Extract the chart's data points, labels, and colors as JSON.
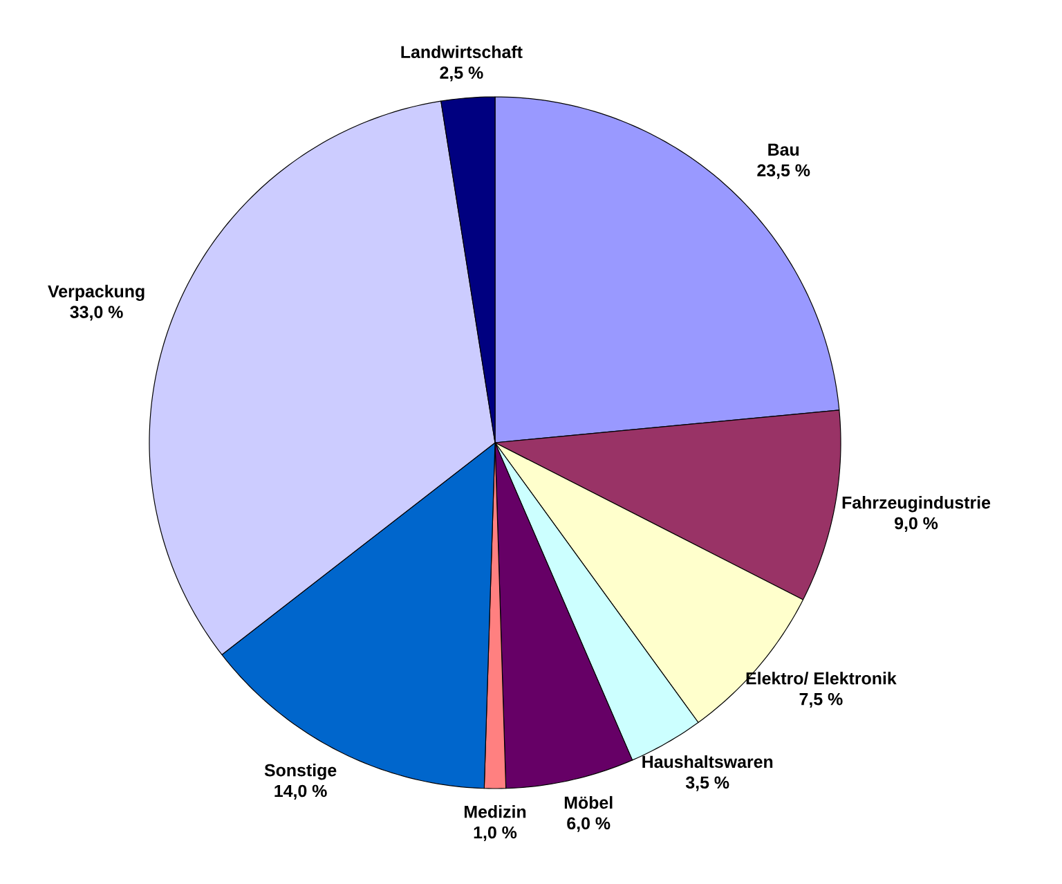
{
  "chart_data": {
    "type": "pie",
    "categories": [
      "Bau",
      "Fahrzeugindustrie",
      "Elektro/ Elektronik",
      "Haushaltswaren",
      "Möbel",
      "Medizin",
      "Sonstige",
      "Verpackung",
      "Landwirtschaft"
    ],
    "values": [
      23.5,
      9.0,
      7.5,
      3.5,
      6.0,
      1.0,
      14.0,
      33.0,
      2.5
    ],
    "value_labels": [
      "23,5 %",
      "9,0 %",
      "7,5 %",
      "3,5 %",
      "6,0 %",
      "1,0 %",
      "14,0 %",
      "33,0 %",
      "2,5 %"
    ],
    "colors": [
      "#9999ff",
      "#993366",
      "#ffffcc",
      "#ccffff",
      "#660066",
      "#ff8080",
      "#0066cc",
      "#ccccff",
      "#000080"
    ]
  }
}
